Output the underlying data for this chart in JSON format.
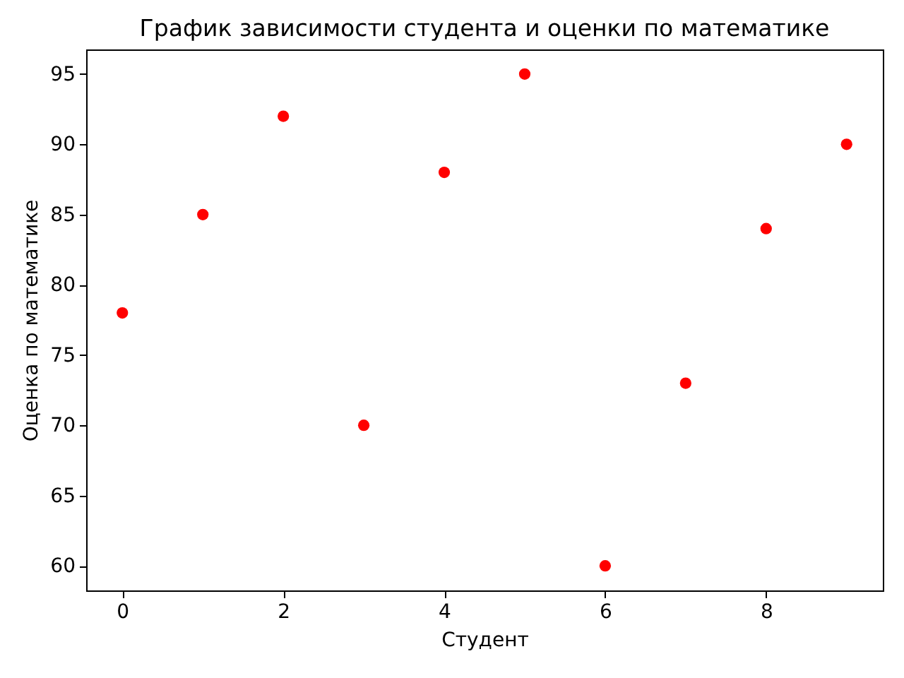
{
  "chart_data": {
    "type": "scatter",
    "title": "График зависимости студента и оценки по математике",
    "xlabel": "Студент",
    "ylabel": "Оценка по математике",
    "x": [
      0,
      1,
      2,
      3,
      4,
      5,
      6,
      7,
      8,
      9
    ],
    "values": [
      78,
      85,
      92,
      70,
      88,
      95,
      60,
      73,
      84,
      90
    ],
    "color": "#ff0000",
    "marker": "circle",
    "xlim": [
      -0.45,
      9.45
    ],
    "ylim": [
      58.25,
      96.75
    ],
    "xticks": [
      0,
      2,
      4,
      6,
      8
    ],
    "yticks": [
      60,
      65,
      70,
      75,
      80,
      85,
      90,
      95
    ],
    "grid": false
  }
}
